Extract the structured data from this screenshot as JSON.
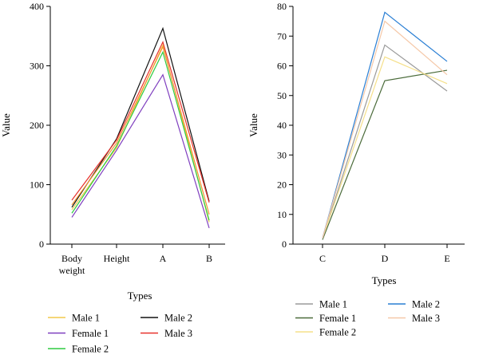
{
  "chart_data": [
    {
      "type": "line",
      "xlabel": "Types",
      "ylabel": "Value",
      "ylim": [
        0,
        400
      ],
      "yticks": [
        0,
        100,
        200,
        300,
        400
      ],
      "categories": [
        [
          "Body",
          "weight"
        ],
        [
          "Height"
        ],
        [
          "A"
        ],
        [
          "B"
        ]
      ],
      "legend_layout": "two-column, below",
      "series": [
        {
          "name": "Male 1",
          "color": "#f2c94c",
          "values": [
            58,
            162,
            335,
            37
          ]
        },
        {
          "name": "Female 1",
          "color": "#7f3fbf",
          "values": [
            45,
            158,
            285,
            27
          ]
        },
        {
          "name": "Female 2",
          "color": "#2ecc40",
          "values": [
            52,
            165,
            323,
            40
          ]
        },
        {
          "name": "Male 2",
          "color": "#111111",
          "values": [
            62,
            177,
            363,
            72
          ]
        },
        {
          "name": "Male 3",
          "color": "#e8322c",
          "values": [
            74,
            175,
            340,
            70
          ]
        },
        {
          "name": "",
          "color": "#f29230",
          "values": [
            66,
            170,
            332,
            50
          ]
        }
      ]
    },
    {
      "type": "line",
      "xlabel": "Types",
      "ylabel": "Value",
      "ylim": [
        0,
        80
      ],
      "yticks": [
        0,
        10,
        20,
        30,
        40,
        50,
        60,
        70,
        80
      ],
      "categories": [
        [
          "C"
        ],
        [
          "D"
        ],
        [
          "E"
        ]
      ],
      "legend_layout": "two-column, below",
      "series": [
        {
          "name": "Male 1",
          "color": "#9a9a9a",
          "values": [
            2,
            67,
            51.5
          ]
        },
        {
          "name": "Female 1",
          "color": "#4a6b3a",
          "values": [
            1.5,
            55,
            58.5
          ]
        },
        {
          "name": "Female 2",
          "color": "#f5e08a",
          "values": [
            2,
            63,
            54
          ]
        },
        {
          "name": "Male 2",
          "color": "#2a7fd4",
          "values": [
            2,
            78,
            61.5
          ]
        },
        {
          "name": "Male 3",
          "color": "#f5c8a8",
          "values": [
            2,
            75,
            57
          ]
        }
      ]
    }
  ]
}
